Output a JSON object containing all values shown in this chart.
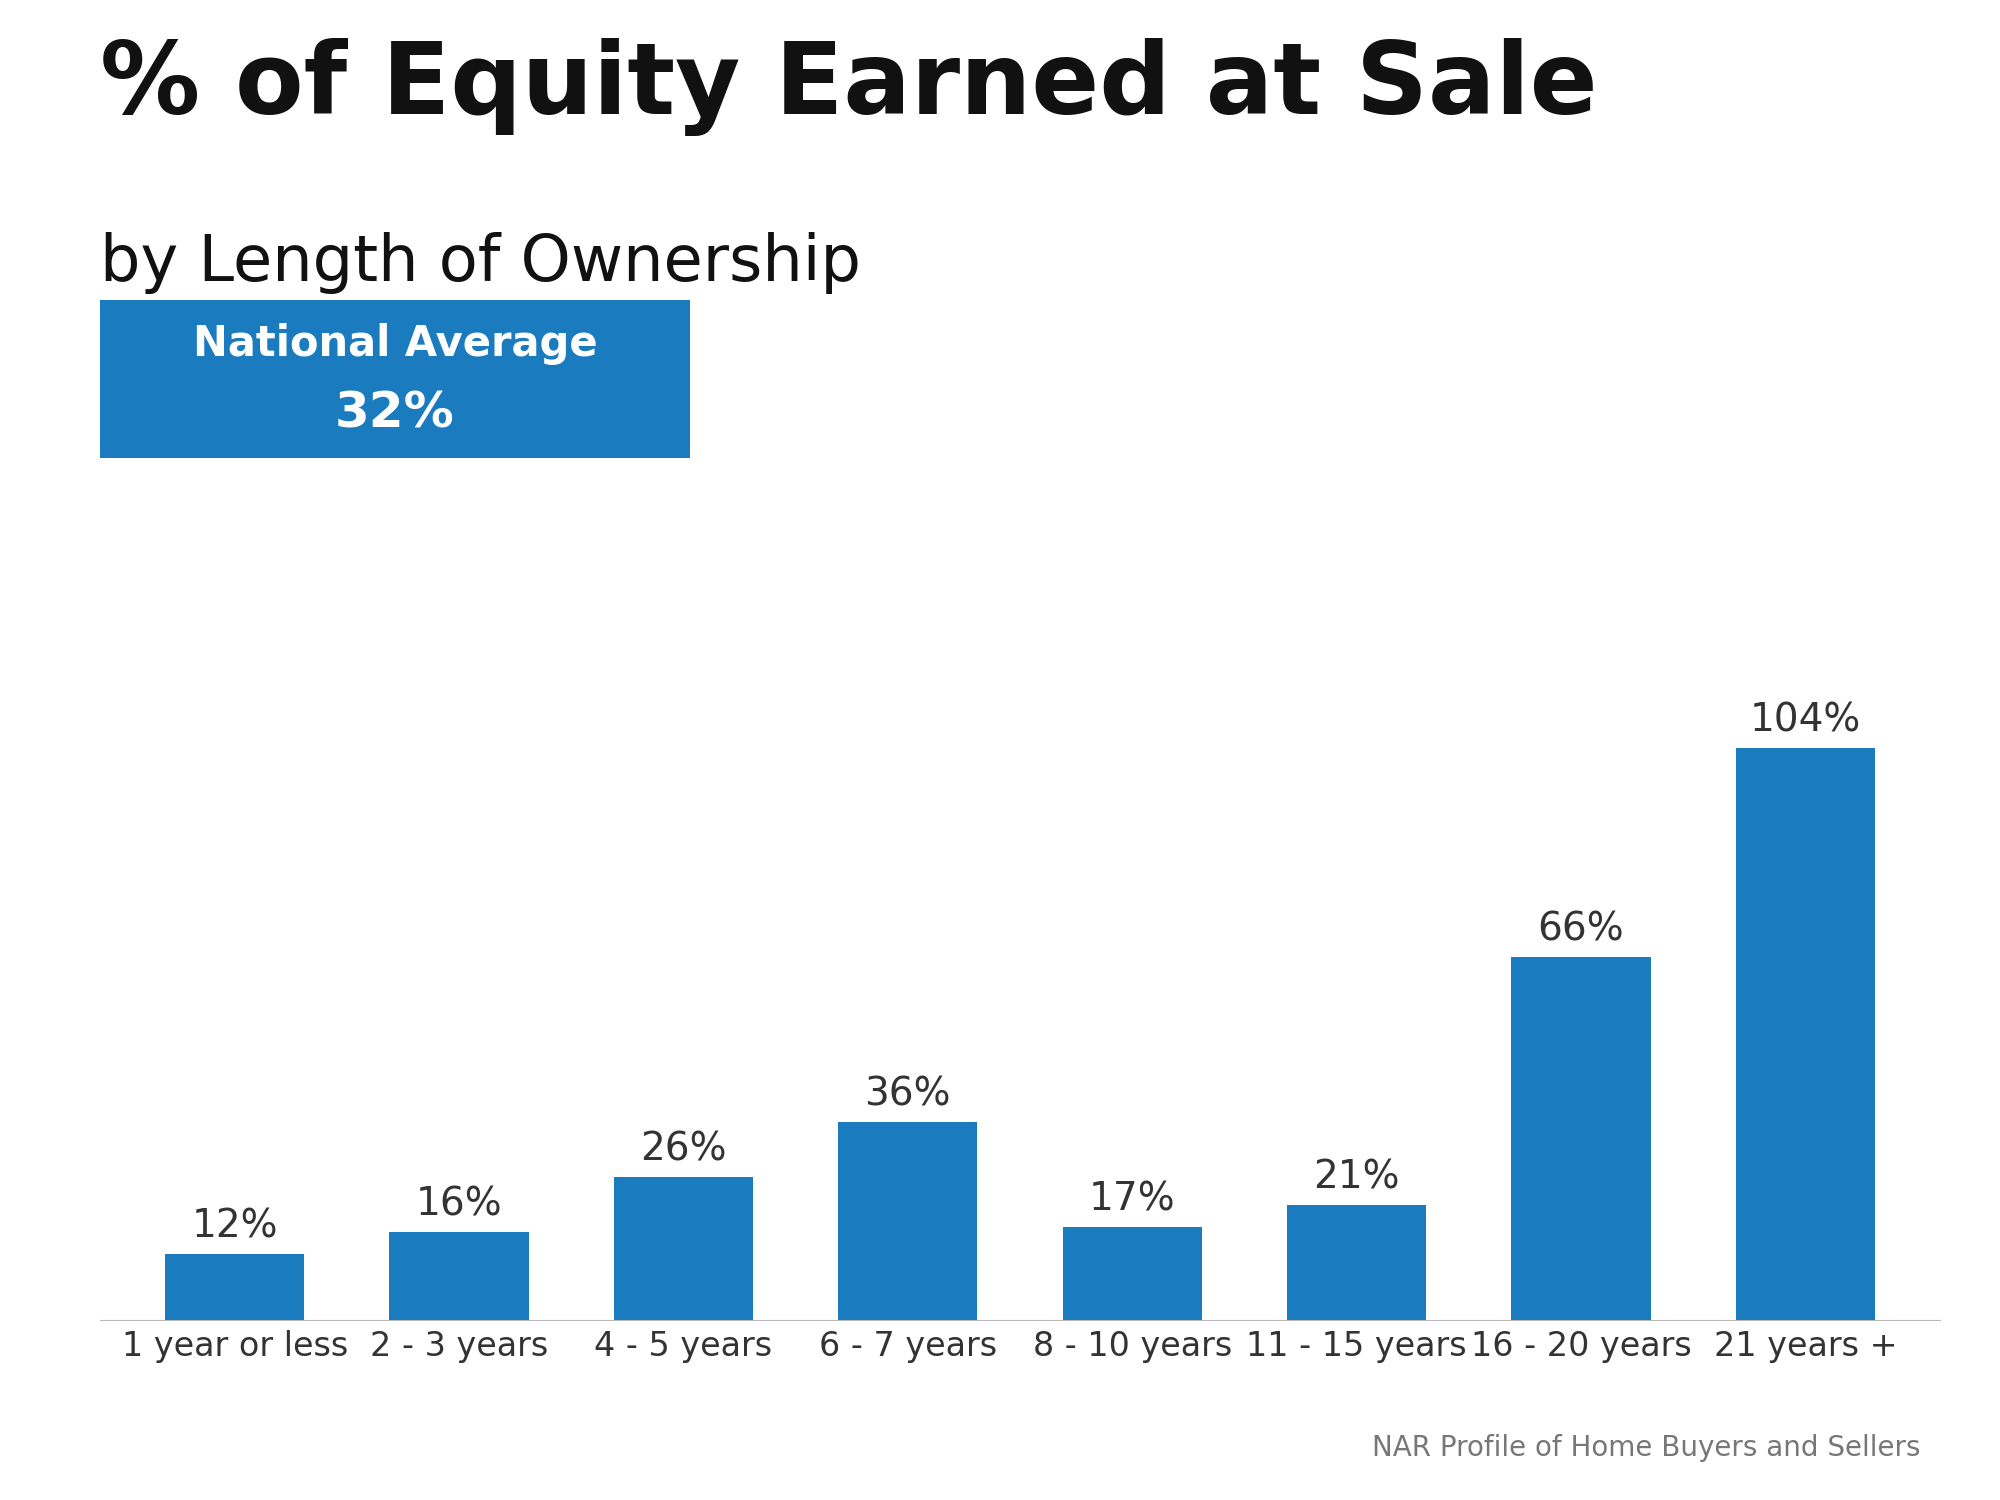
{
  "title_line1": "% of Equity Earned at Sale",
  "title_line2": "by Length of Ownership",
  "categories": [
    "1 year or less",
    "2 - 3 years",
    "4 - 5 years",
    "6 - 7 years",
    "8 - 10 years",
    "11 - 15 years",
    "16 - 20 years",
    "21 years +"
  ],
  "values": [
    12,
    16,
    26,
    36,
    17,
    21,
    66,
    104
  ],
  "bar_color": "#1a7bbf",
  "label_color": "#333333",
  "title_color": "#111111",
  "subtitle_color": "#111111",
  "background_color": "#ffffff",
  "national_avg_text1": "National Average",
  "national_avg_text2": "32%",
  "national_avg_bg": "#1a7bbf",
  "national_avg_text_color": "#ffffff",
  "source_text": "NAR Profile of Home Buyers and Sellers",
  "source_color": "#777777",
  "ylim": [
    0,
    120
  ],
  "bar_label_fontsize": 28,
  "tick_label_fontsize": 24,
  "title_fontsize": 72,
  "subtitle_fontsize": 46,
  "national_avg_fontsize1": 30,
  "national_avg_fontsize2": 36,
  "source_fontsize": 20
}
